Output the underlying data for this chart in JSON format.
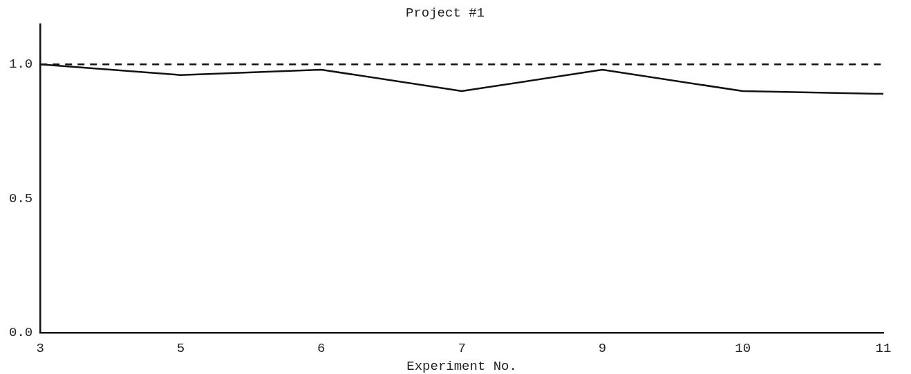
{
  "chart_data": {
    "type": "line",
    "title": "Project #1",
    "xlabel": "Experiment No.",
    "categories": [
      "3",
      "5",
      "6",
      "7",
      "9",
      "10",
      "11"
    ],
    "series": [
      {
        "color": "#111111",
        "values": [
          1.0,
          0.96,
          0.98,
          0.9,
          0.98,
          0.9,
          0.89
        ]
      }
    ],
    "ylim": [
      0,
      1.15
    ],
    "yticks": [
      {
        "value": 0,
        "label": "0.0"
      },
      {
        "value": 0.5,
        "label": "0.5"
      },
      {
        "value": 1,
        "label": "1.0"
      }
    ],
    "ref_lines": [
      {
        "axis": "y",
        "value": 1,
        "color": "#111111",
        "line_style": "dashed"
      }
    ],
    "grid": false,
    "legend": false,
    "marker": "none",
    "line_style": "solid"
  }
}
